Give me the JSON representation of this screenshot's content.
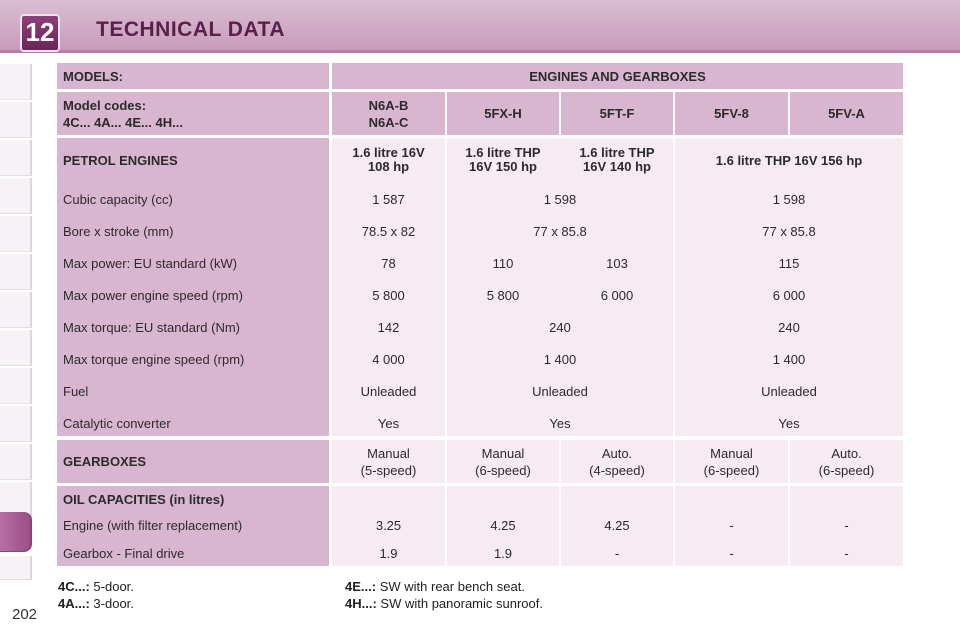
{
  "chapter": {
    "number": "12",
    "title": "TECHNICAL DATA"
  },
  "page_number": "202",
  "table": {
    "models_header": "MODELS:",
    "engines_header": "ENGINES AND GEARBOXES",
    "model_codes_label_1": "Model codes:",
    "model_codes_label_2": "4C... 4A... 4E... 4H...",
    "codes": [
      {
        "line1": "N6A-B",
        "line2": "N6A-C"
      },
      {
        "line1": "5FX-H"
      },
      {
        "line1": "5FT-F"
      },
      {
        "line1": "5FV-8"
      },
      {
        "line1": "5FV-A"
      }
    ],
    "petrol_label": "PETROL ENGINES",
    "engines": [
      {
        "line1": "1.6 litre 16V",
        "line2": "108 hp"
      },
      {
        "line1": "1.6 litre THP",
        "line2": "16V 150 hp"
      },
      {
        "line1": "1.6 litre THP",
        "line2": "16V 140 hp"
      },
      {
        "line1": "1.6 litre THP 16V 156 hp"
      }
    ],
    "spec_rows": [
      {
        "label": "Cubic capacity (cc)",
        "c1": "1 587",
        "c23": "1 598",
        "c45": "1 598"
      },
      {
        "label": "Bore x stroke (mm)",
        "c1": "78.5 x 82",
        "c23": "77 x 85.8",
        "c45": "77 x 85.8"
      },
      {
        "label": "Max power: EU standard (kW)",
        "c1": "78",
        "c2": "110",
        "c3": "103",
        "c45": "115"
      },
      {
        "label": "Max power engine speed (rpm)",
        "c1": "5 800",
        "c2": "5 800",
        "c3": "6 000",
        "c45": "6 000"
      },
      {
        "label": "Max torque: EU standard (Nm)",
        "c1": "142",
        "c23": "240",
        "c45": "240"
      },
      {
        "label": "Max torque engine speed (rpm)",
        "c1": "4 000",
        "c23": "1 400",
        "c45": "1 400"
      },
      {
        "label": "Fuel",
        "c1": "Unleaded",
        "c23": "Unleaded",
        "c45": "Unleaded"
      },
      {
        "label": "Catalytic converter",
        "c1": "Yes",
        "c23": "Yes",
        "c45": "Yes"
      }
    ],
    "gearboxes_label": "GEARBOXES",
    "gearboxes": [
      {
        "line1": "Manual",
        "line2": "(5-speed)"
      },
      {
        "line1": "Manual",
        "line2": "(6-speed)"
      },
      {
        "line1": "Auto.",
        "line2": "(4-speed)"
      },
      {
        "line1": "Manual",
        "line2": "(6-speed)"
      },
      {
        "line1": "Auto.",
        "line2": "(6-speed)"
      }
    ],
    "oil_label": "OIL CAPACITIES (in litres)",
    "oil_rows": [
      {
        "label": "Engine (with filter replacement)",
        "values": [
          "3.25",
          "4.25",
          "4.25",
          "-",
          "-"
        ]
      },
      {
        "label": "Gearbox - Final drive",
        "values": [
          "1.9",
          "1.9",
          "-",
          "-",
          "-"
        ]
      }
    ]
  },
  "footnotes": {
    "left": [
      {
        "code": "4C...:",
        "text": "5-door."
      },
      {
        "code": "4A...:",
        "text": "3-door."
      }
    ],
    "right": [
      {
        "code": "4E...:",
        "text": "SW with rear bench seat."
      },
      {
        "code": "4H...:",
        "text": "SW with panoramic sunroof."
      }
    ]
  }
}
